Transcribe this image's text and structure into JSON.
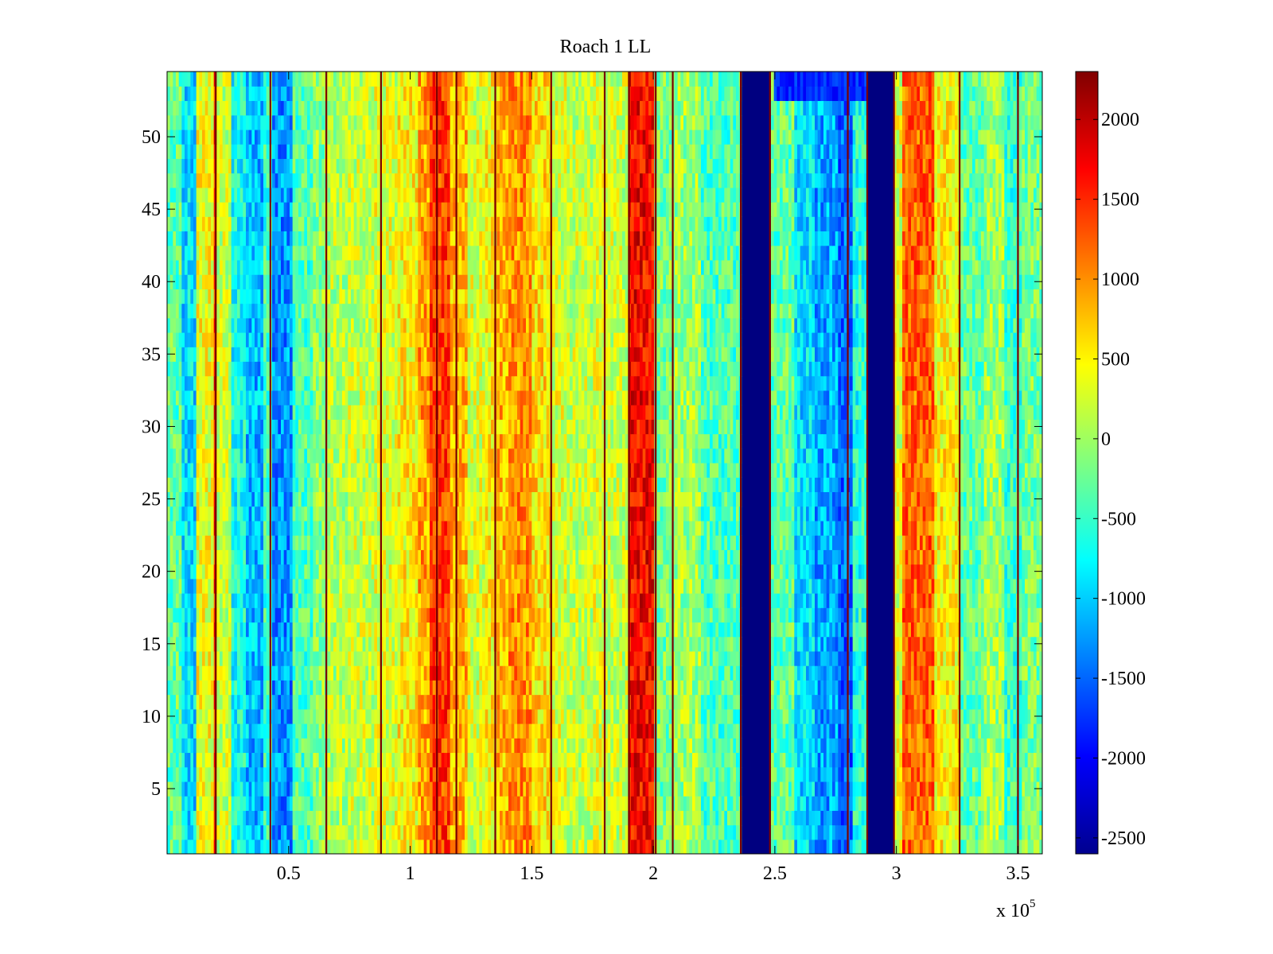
{
  "chart_data": {
    "type": "heatmap",
    "title": "Roach 1 LL",
    "xlabel": "",
    "ylabel": "",
    "x_multiplier_label": "x 10",
    "x_multiplier_exponent": "5",
    "xlim": [
      0,
      360000
    ],
    "ylim": [
      0.5,
      54.5
    ],
    "x_ticks": [
      50000,
      100000,
      150000,
      200000,
      250000,
      300000,
      350000
    ],
    "x_tick_labels": [
      "0.5",
      "1",
      "1.5",
      "2",
      "2.5",
      "3",
      "3.5"
    ],
    "y_ticks": [
      5,
      10,
      15,
      20,
      25,
      30,
      35,
      40,
      45,
      50
    ],
    "y_tick_labels": [
      "5",
      "10",
      "15",
      "20",
      "25",
      "30",
      "35",
      "40",
      "45",
      "50"
    ],
    "rows": 54,
    "colorbar": {
      "colormap": "jet",
      "clim": [
        -2600,
        2300
      ],
      "ticks": [
        2000,
        1500,
        1000,
        500,
        0,
        -500,
        -1000,
        -1500,
        -2000,
        -2500
      ],
      "tick_labels": [
        "2000",
        "1500",
        "1000",
        "500",
        "0",
        "-500",
        "-1000",
        "-1500",
        "-2000",
        "-2500"
      ],
      "placement": "right"
    },
    "column_profile": [
      {
        "x_start": 0,
        "x_end": 6000,
        "value": -300
      },
      {
        "x_start": 6000,
        "x_end": 12000,
        "value": -900
      },
      {
        "x_start": 12000,
        "x_end": 19000,
        "value": 400
      },
      {
        "x_start": 19000,
        "x_end": 21000,
        "value": 1500
      },
      {
        "x_start": 21000,
        "x_end": 26000,
        "value": 200
      },
      {
        "x_start": 26000,
        "x_end": 33000,
        "value": -700
      },
      {
        "x_start": 33000,
        "x_end": 40000,
        "value": -1100
      },
      {
        "x_start": 40000,
        "x_end": 43000,
        "value": -500
      },
      {
        "x_start": 43000,
        "x_end": 52000,
        "value": -1300
      },
      {
        "x_start": 52000,
        "x_end": 60000,
        "value": -400
      },
      {
        "x_start": 60000,
        "x_end": 66000,
        "value": -100
      },
      {
        "x_start": 66000,
        "x_end": 75000,
        "value": 100
      },
      {
        "x_start": 75000,
        "x_end": 85000,
        "value": 200
      },
      {
        "x_start": 85000,
        "x_end": 95000,
        "value": 300
      },
      {
        "x_start": 95000,
        "x_end": 103000,
        "value": 500
      },
      {
        "x_start": 103000,
        "x_end": 108000,
        "value": 900
      },
      {
        "x_start": 108000,
        "x_end": 116000,
        "value": 1400
      },
      {
        "x_start": 116000,
        "x_end": 124000,
        "value": 800
      },
      {
        "x_start": 124000,
        "x_end": 131000,
        "value": 300
      },
      {
        "x_start": 131000,
        "x_end": 136000,
        "value": 500
      },
      {
        "x_start": 136000,
        "x_end": 140000,
        "value": 800
      },
      {
        "x_start": 140000,
        "x_end": 150000,
        "value": 1000
      },
      {
        "x_start": 150000,
        "x_end": 158000,
        "value": 600
      },
      {
        "x_start": 158000,
        "x_end": 165000,
        "value": 300
      },
      {
        "x_start": 165000,
        "x_end": 175000,
        "value": 200
      },
      {
        "x_start": 175000,
        "x_end": 180000,
        "value": 300
      },
      {
        "x_start": 180000,
        "x_end": 190000,
        "value": 200
      },
      {
        "x_start": 190000,
        "x_end": 201000,
        "value": 1700
      },
      {
        "x_start": 201000,
        "x_end": 208000,
        "value": -200
      },
      {
        "x_start": 208000,
        "x_end": 220000,
        "value": 0
      },
      {
        "x_start": 220000,
        "x_end": 236000,
        "value": -400
      },
      {
        "x_start": 236000,
        "x_end": 248000,
        "value": -2600
      },
      {
        "x_start": 248000,
        "x_end": 258000,
        "value": -300
      },
      {
        "x_start": 258000,
        "x_end": 266000,
        "value": -900
      },
      {
        "x_start": 266000,
        "x_end": 276000,
        "value": -1200
      },
      {
        "x_start": 276000,
        "x_end": 282000,
        "value": -1500
      },
      {
        "x_start": 282000,
        "x_end": 288000,
        "value": -600
      },
      {
        "x_start": 288000,
        "x_end": 299000,
        "value": -2600
      },
      {
        "x_start": 299000,
        "x_end": 303000,
        "value": 300
      },
      {
        "x_start": 303000,
        "x_end": 316000,
        "value": 1200
      },
      {
        "x_start": 316000,
        "x_end": 326000,
        "value": 500
      },
      {
        "x_start": 326000,
        "x_end": 336000,
        "value": -300
      },
      {
        "x_start": 336000,
        "x_end": 344000,
        "value": 0
      },
      {
        "x_start": 344000,
        "x_end": 352000,
        "value": -500
      },
      {
        "x_start": 352000,
        "x_end": 360000,
        "value": -200
      }
    ],
    "thin_lines_x": [
      20000,
      42500,
      65500,
      88000,
      111000,
      119000,
      135000,
      158000,
      180000,
      190000,
      201000,
      208000,
      236000,
      248000,
      280000,
      288000,
      299000,
      326000,
      350000
    ],
    "top_patch": {
      "x_start": 250000,
      "x_end": 288000,
      "row_start": 52.5,
      "row_end": 54.5,
      "value": -1800
    }
  }
}
